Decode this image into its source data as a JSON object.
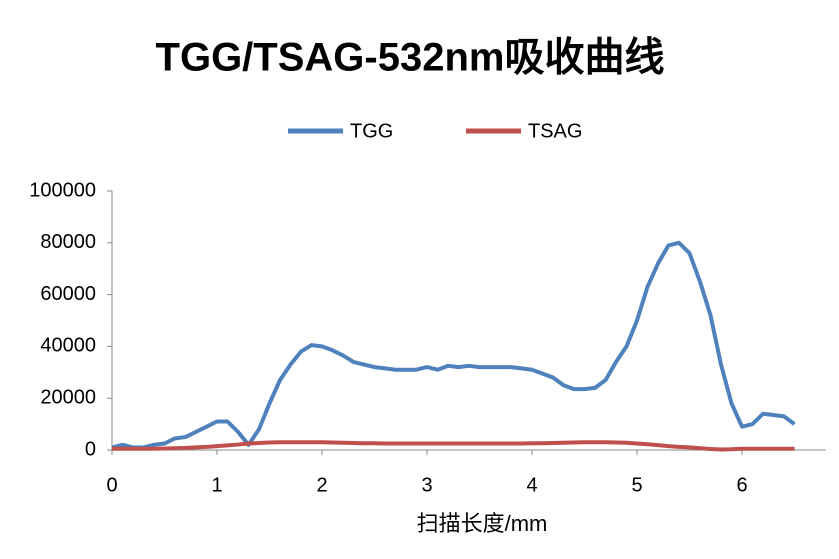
{
  "chart_data": {
    "type": "line",
    "title": "TGG/TSAG-532nm吸收曲线",
    "x_label": "扫描长度/mm",
    "x": [
      0,
      0.1,
      0.2,
      0.3,
      0.4,
      0.5,
      0.6,
      0.7,
      0.8,
      0.9,
      1.0,
      1.1,
      1.2,
      1.3,
      1.4,
      1.5,
      1.6,
      1.7,
      1.8,
      1.9,
      2.0,
      2.1,
      2.2,
      2.3,
      2.4,
      2.5,
      2.6,
      2.7,
      2.8,
      2.9,
      3.0,
      3.1,
      3.2,
      3.3,
      3.4,
      3.5,
      3.6,
      3.7,
      3.8,
      3.9,
      4.0,
      4.1,
      4.2,
      4.3,
      4.4,
      4.5,
      4.6,
      4.7,
      4.8,
      4.9,
      5.0,
      5.1,
      5.2,
      5.3,
      5.4,
      5.5,
      5.6,
      5.7,
      5.8,
      5.9,
      6.0,
      6.1,
      6.2,
      6.3,
      6.4,
      6.5
    ],
    "series": [
      {
        "name": "TGG",
        "color": "#4f81bd",
        "values": [
          1000,
          2000,
          1000,
          1000,
          2000,
          2500,
          4500,
          5000,
          7000,
          9000,
          11000,
          11000,
          7000,
          2000,
          8000,
          18000,
          27000,
          33000,
          38000,
          40500,
          40000,
          38500,
          36500,
          34000,
          33000,
          32000,
          31500,
          31000,
          31000,
          31000,
          32000,
          31000,
          32500,
          32000,
          32500,
          32000,
          32000,
          32000,
          32000,
          31500,
          31000,
          29500,
          28000,
          25000,
          23500,
          23500,
          24000,
          27000,
          34000,
          40000,
          50000,
          63000,
          72000,
          79000,
          80000,
          76000,
          65000,
          52000,
          33000,
          18000,
          9000,
          10000,
          14000,
          13500,
          13000,
          10000
        ]
      },
      {
        "name": "TSAG",
        "color": "#c0504d",
        "values": [
          500,
          500,
          500,
          500,
          500,
          600,
          700,
          800,
          1000,
          1200,
          1500,
          1800,
          2100,
          2500,
          2700,
          2900,
          3000,
          3000,
          3000,
          3000,
          3000,
          2900,
          2800,
          2700,
          2600,
          2600,
          2500,
          2500,
          2500,
          2500,
          2500,
          2500,
          2500,
          2500,
          2500,
          2500,
          2500,
          2500,
          2500,
          2500,
          2600,
          2600,
          2700,
          2800,
          2900,
          3000,
          3000,
          3000,
          2900,
          2800,
          2500,
          2200,
          1900,
          1500,
          1200,
          1000,
          700,
          400,
          200,
          300,
          500,
          500,
          500,
          500,
          500,
          500
        ]
      }
    ],
    "xlim": [
      0,
      6.8
    ],
    "xticks": [
      0,
      1,
      2,
      3,
      4,
      5,
      6
    ],
    "ylim": [
      0,
      100000
    ],
    "yticks": [
      0,
      20000,
      40000,
      60000,
      80000,
      100000
    ],
    "legend": "top"
  }
}
